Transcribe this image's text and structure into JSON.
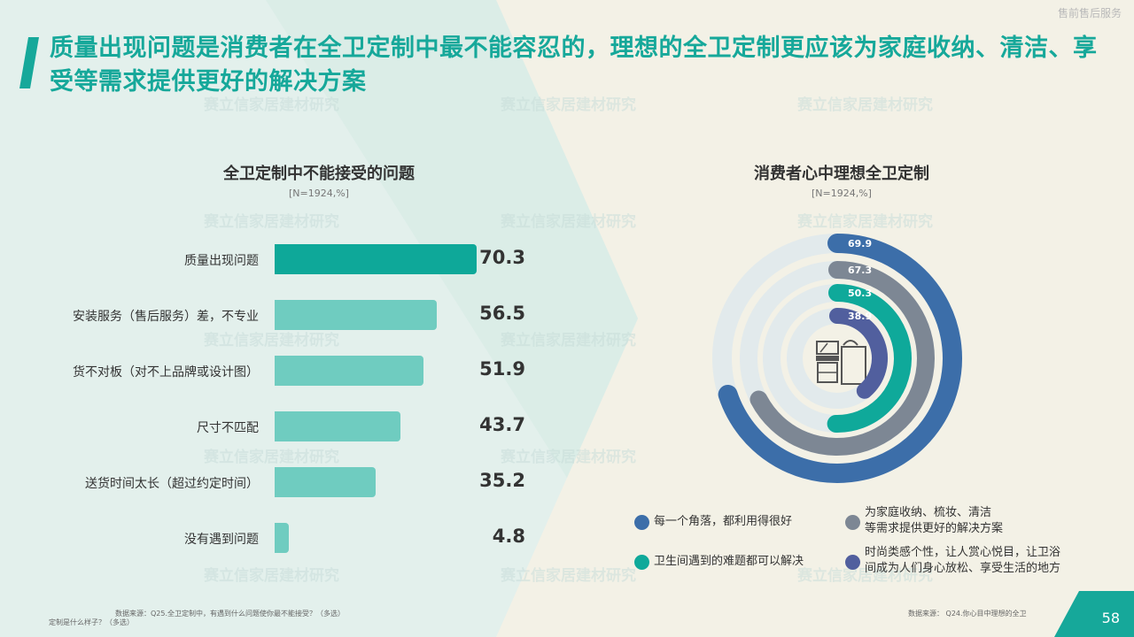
{
  "header": {
    "top_right": "售前售后服务",
    "title": "质量出现问题是消费者在全卫定制中最不能容忍的，理想的全卫定制更应该为家庭收纳、清洁、享受等需求提供更好的解决方案"
  },
  "watermark": "赛立信家居建材研究",
  "colors": {
    "accent": "#16a89a",
    "bar_top": "#0ea899",
    "bar_other": "#6fccc0",
    "ring_blue": "#3c6ea9",
    "ring_gray": "#7d8794",
    "ring_teal": "#0fa99a",
    "ring_purple": "#515f9e"
  },
  "chart_data": [
    {
      "type": "bar",
      "title": "全卫定制中不能接受的问题",
      "subtitle": "[N=1924,%]",
      "categories": [
        "质量出现问题",
        "安装服务（售后服务）差，不专业",
        "货不对板（对不上品牌或设计图）",
        "尺寸不匹配",
        "送货时间太长（超过约定时间）",
        "没有遇到问题"
      ],
      "values": [
        70.3,
        56.5,
        51.9,
        43.7,
        35.2,
        4.8
      ]
    },
    {
      "type": "pie",
      "title": "消费者心中理想全卫定制",
      "subtitle": "[N=1924,%]",
      "series": [
        {
          "name": "每一个角落，都利用得很好",
          "value": 69.9,
          "color": "#3c6ea9"
        },
        {
          "name": "为家庭收纳、梳妆、清洁等需求提供更好的解决方案",
          "value": 67.3,
          "color": "#7d8794"
        },
        {
          "name": "卫生间遇到的难题都可以解决",
          "value": 50.3,
          "color": "#0fa99a"
        },
        {
          "name": "时尚类感个性，让人赏心悦目，让卫浴间成为人们身心放松、享受生活的地方",
          "value": 38.9,
          "color": "#515f9e"
        }
      ]
    }
  ],
  "legend": {
    "item1": "每一个角落，都利用得很好",
    "item2_line1": "为家庭收纳、梳妆、清洁",
    "item2_line2": "等需求提供更好的解决方案",
    "item3": "卫生间遇到的难题都可以解决",
    "item4_line1": "时尚类感个性，让人赏心悦目，让卫浴",
    "item4_line2": "间成为人们身心放松、享受生活的地方"
  },
  "footer": {
    "source_left_1": "数据来源：Q25.全卫定制中，有遇到什么问题使你最不能接受？（多选）",
    "source_left_2": "定制是什么样子？（多选）",
    "source_right": "数据来源：   Q24.你心目中理想的全卫",
    "page_number": "58"
  }
}
